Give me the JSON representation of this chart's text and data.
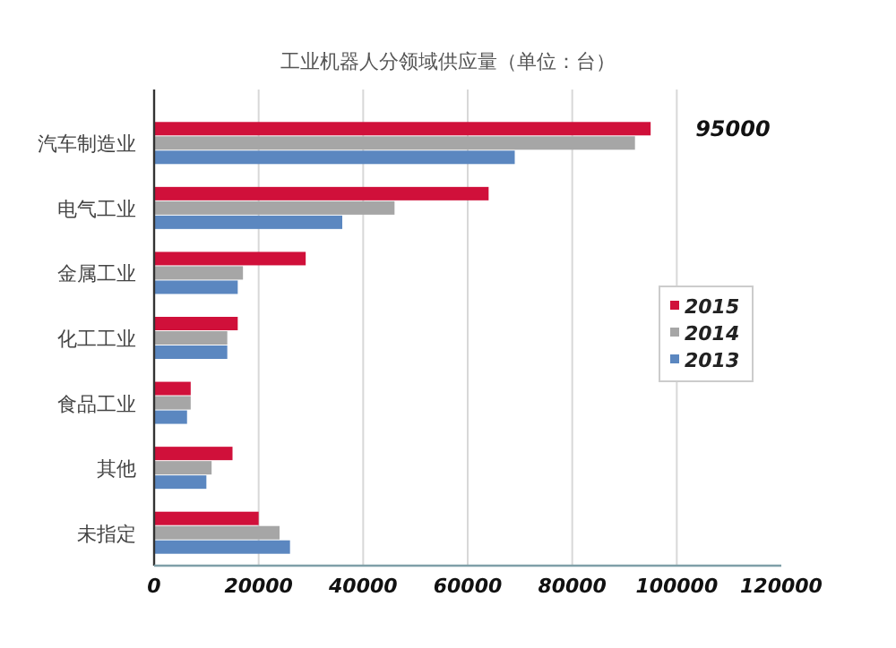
{
  "chart_data": {
    "type": "bar",
    "orientation": "horizontal",
    "title": "工业机器人分领域供应量（单位：台）",
    "categories": [
      "汽车制造业",
      "电气工业",
      "金属工业",
      "化工工业",
      "食品工业",
      "其他",
      "未指定"
    ],
    "series": [
      {
        "name": "2015",
        "color": "#d0103a",
        "values": [
          95000,
          64000,
          29000,
          16000,
          7000,
          15000,
          20000
        ],
        "value_labels": [
          "95000",
          null,
          null,
          null,
          null,
          null,
          null
        ]
      },
      {
        "name": "2014",
        "color": "#a6a6a6",
        "values": [
          92000,
          46000,
          17000,
          14000,
          7000,
          11000,
          24000
        ]
      },
      {
        "name": "2013",
        "color": "#5b87c0",
        "values": [
          69000,
          36000,
          16000,
          14000,
          6300,
          10000,
          26000
        ]
      }
    ],
    "xlim": [
      0,
      120000
    ],
    "xticks": [
      0,
      20000,
      40000,
      60000,
      80000,
      100000,
      120000
    ],
    "grid": "x",
    "legend": "right"
  }
}
